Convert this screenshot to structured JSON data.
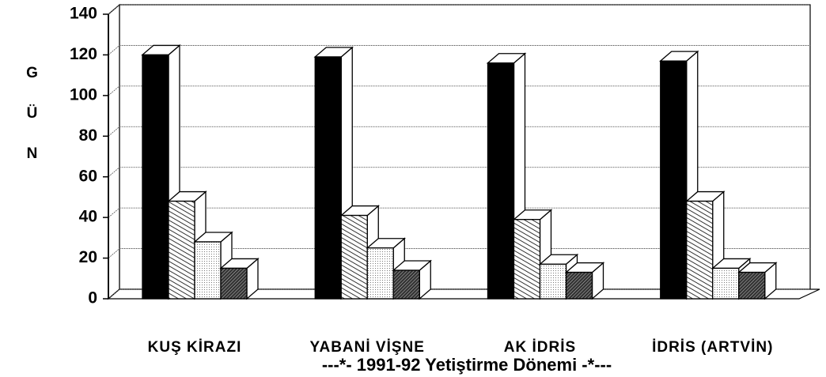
{
  "chart_data": {
    "type": "bar3d",
    "categories": [
      "KUŞ  KİRAZI",
      "YABANİ  VİŞNE",
      "AK  İDRİS",
      "İDRİS (ARTVİN)"
    ],
    "xlabel": "---*-  1991-92  Yetiştirme  Dönemi  -*---",
    "ylabel": "GÜN",
    "series": [
      {
        "color": "#000000",
        "pattern": "solid",
        "values": [
          120,
          119,
          116,
          117
        ]
      },
      {
        "color": "#ffffff",
        "pattern": "hatch",
        "values": [
          48,
          41,
          39,
          48
        ]
      },
      {
        "color": "#ffffff",
        "pattern": "dots",
        "values": [
          28,
          25,
          17,
          15
        ]
      },
      {
        "color": "#ffffff",
        "pattern": "dense-hatch",
        "values": [
          15,
          14,
          13,
          13
        ]
      }
    ],
    "ylim": [
      0,
      140
    ],
    "yticks": [
      0,
      20,
      40,
      60,
      80,
      100,
      120,
      140
    ],
    "grid": true
  }
}
